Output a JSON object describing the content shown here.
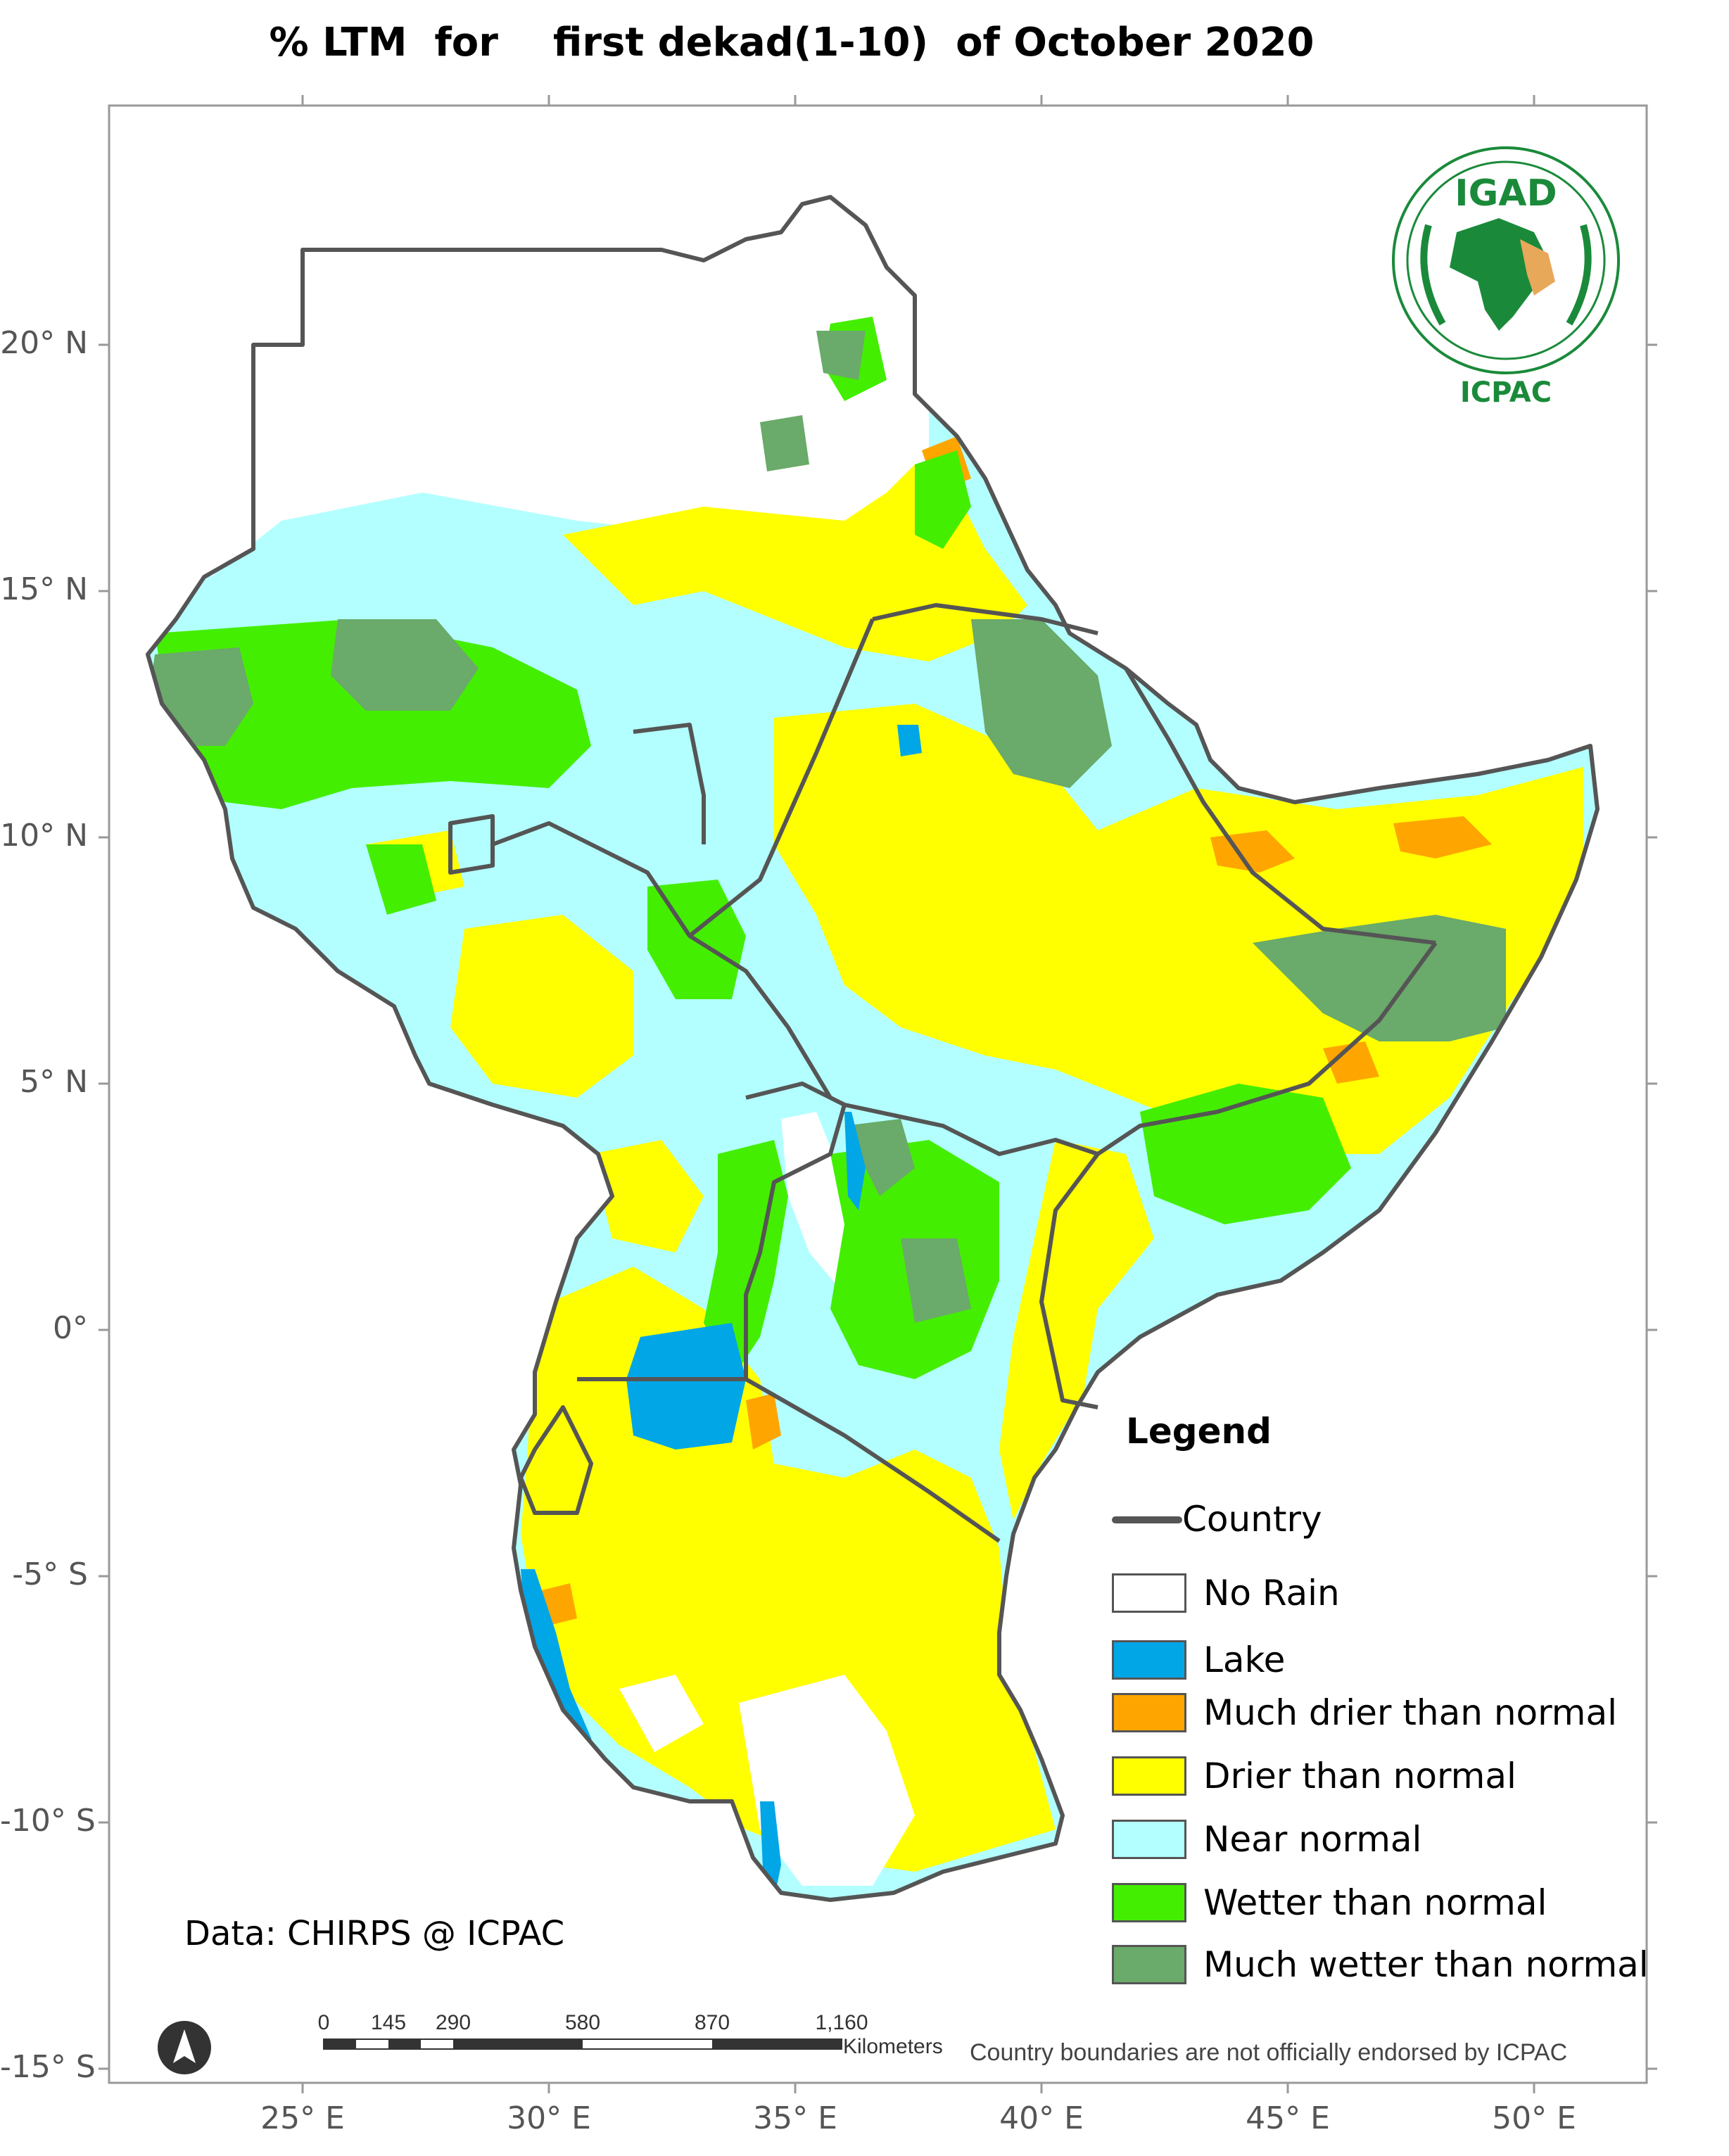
{
  "title": "% LTM  for    first dekad(1-10)  of October 2020",
  "axes": {
    "latitude": [
      {
        "label": "20° N",
        "value": 20
      },
      {
        "label": "15° N",
        "value": 15
      },
      {
        "label": "10° N",
        "value": 10
      },
      {
        "label": "5° N",
        "value": 5
      },
      {
        "label": "0°",
        "value": 0
      },
      {
        "label": "-5° S",
        "value": -5
      },
      {
        "label": "-10° S",
        "value": -10
      },
      {
        "label": "-15° S",
        "value": -15
      }
    ],
    "longitude": [
      {
        "label": "25° E",
        "value": 25
      },
      {
        "label": "30° E",
        "value": 30
      },
      {
        "label": "35° E",
        "value": 35
      },
      {
        "label": "40° E",
        "value": 40
      },
      {
        "label": "45° E",
        "value": 45
      },
      {
        "label": "50° E",
        "value": 50
      }
    ]
  },
  "legend": {
    "title": "Legend",
    "country_label": "Country",
    "country_color": "#555555",
    "items": [
      {
        "label": "No Rain",
        "color": "#ffffff"
      },
      {
        "label": "Lake",
        "color": "#00a6e6"
      },
      {
        "label": "Much drier than normal",
        "color": "#ffa500"
      },
      {
        "label": "Drier than normal",
        "color": "#ffff00"
      },
      {
        "label": "Near normal",
        "color": "#b3ffff"
      },
      {
        "label": "Wetter than normal",
        "color": "#44ee00"
      },
      {
        "label": "Much wetter than normal",
        "color": "#6aaa6a"
      }
    ]
  },
  "credit": "Data: CHIRPS @ ICPAC",
  "disclaimer": "Country boundaries are not officially endorsed by ICPAC",
  "scale_bar": {
    "numbers": [
      "0",
      "145",
      "290",
      "580",
      "870",
      "1,160"
    ],
    "unit": "Kilometers"
  },
  "logo": {
    "acronym": "IGAD",
    "subtitle": "ICPAC"
  },
  "north_arrow_icon": "north-arrow-icon"
}
